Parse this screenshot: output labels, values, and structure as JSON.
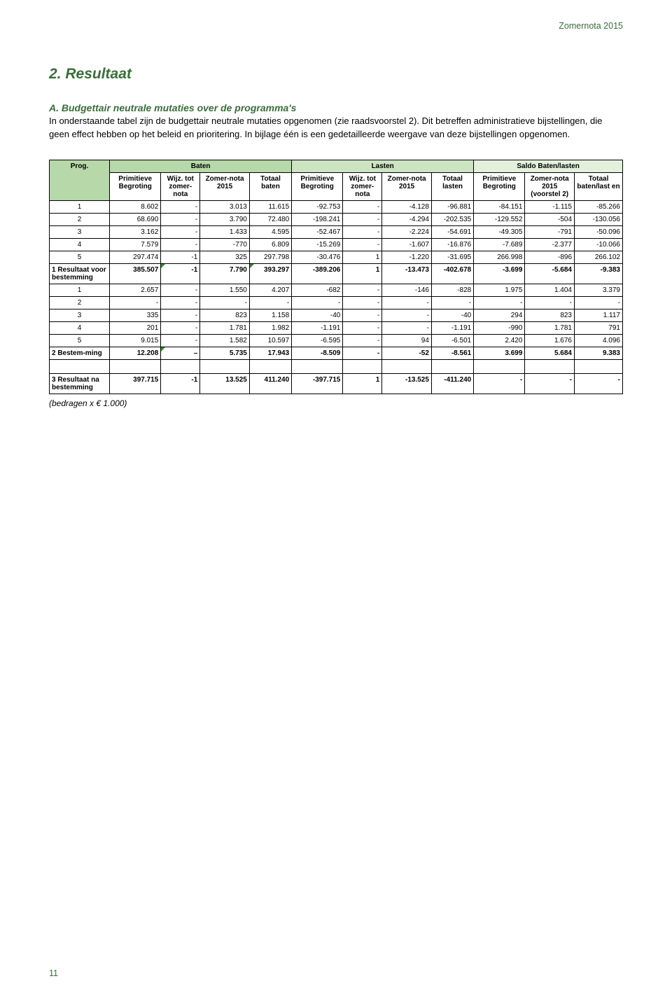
{
  "doc_header": "Zomernota 2015",
  "section_title": "2. Resultaat",
  "sub_heading": "A.    Budgettair neutrale mutaties over de programma's",
  "paragraph": "In onderstaande tabel zijn de budgettair neutrale mutaties opgenomen (zie raadsvoorstel 2). Dit betreffen administratieve bijstellingen, die geen effect hebben op het beleid en prioritering. In bijlage één is een gedetailleerde weergave van deze bijstellingen opgenomen.",
  "footnote": "(bedragen x € 1.000)",
  "page_num": "11",
  "table": {
    "group_headers": {
      "baten": "Baten",
      "lasten": "Lasten",
      "saldo": "Saldo Baten/lasten"
    },
    "col_headers": {
      "prog": "Prog.",
      "b_prim": "Primitieve Begroting",
      "b_wijz": "Wijz. tot zomer-nota",
      "b_zomer": "Zomer-nota 2015",
      "b_tot": "Totaal baten",
      "l_prim": "Primitieve Begroting",
      "l_wijz": "Wijz. tot zomer-nota",
      "l_zomer": "Zomer-nota 2015",
      "l_tot": "Totaal lasten",
      "s_prim": "Primitieve Begroting",
      "s_zomer": "Zomer-nota 2015 (voorstel 2)",
      "s_tot": "Totaal baten/last en"
    },
    "rows": [
      {
        "label": "1",
        "b": [
          "8.602",
          "-",
          "3.013",
          "11.615"
        ],
        "l": [
          "-92.753",
          "-",
          "-4.128",
          "-96.881"
        ],
        "s": [
          "-84.151",
          "-1.115",
          "-85.266"
        ]
      },
      {
        "label": "2",
        "b": [
          "68.690",
          "-",
          "3.790",
          "72.480"
        ],
        "l": [
          "-198.241",
          "-",
          "-4.294",
          "-202.535"
        ],
        "s": [
          "-129.552",
          "-504",
          "-130.056"
        ]
      },
      {
        "label": "3",
        "b": [
          "3.162",
          "-",
          "1.433",
          "4.595"
        ],
        "l": [
          "-52.467",
          "-",
          "-2.224",
          "-54.691"
        ],
        "s": [
          "-49.305",
          "-791",
          "-50.096"
        ]
      },
      {
        "label": "4",
        "b": [
          "7.579",
          "-",
          "-770",
          "6.809"
        ],
        "l": [
          "-15.269",
          "-",
          "-1.607",
          "-16.876"
        ],
        "s": [
          "-7.689",
          "-2.377",
          "-10.066"
        ]
      },
      {
        "label": "5",
        "b": [
          "297.474",
          "-1",
          "325",
          "297.798"
        ],
        "l": [
          "-30.476",
          "1",
          "-1.220",
          "-31.695"
        ],
        "s": [
          "266.998",
          "-896",
          "266.102"
        ]
      }
    ],
    "sub1": {
      "label": "1 Resultaat voor bestemming",
      "b": [
        "385.507",
        "-1",
        "7.790",
        "393.297"
      ],
      "l": [
        "-389.206",
        "1",
        "-13.473",
        "-402.678"
      ],
      "s": [
        "-3.699",
        "-5.684",
        "-9.383"
      ],
      "tri": [
        2,
        4
      ]
    },
    "rows2": [
      {
        "label": "1",
        "b": [
          "2.657",
          "-",
          "1.550",
          "4.207"
        ],
        "l": [
          "-682",
          "-",
          "-146",
          "-828"
        ],
        "s": [
          "1.975",
          "1.404",
          "3.379"
        ]
      },
      {
        "label": "2",
        "b": [
          "-",
          "-",
          "-",
          "-"
        ],
        "l": [
          "-",
          "-",
          "-",
          "-"
        ],
        "s": [
          "-",
          "-",
          "-"
        ]
      },
      {
        "label": "3",
        "b": [
          "335",
          "-",
          "823",
          "1.158"
        ],
        "l": [
          "-40",
          "-",
          "-",
          "-40"
        ],
        "s": [
          "294",
          "823",
          "1.117"
        ]
      },
      {
        "label": "4",
        "b": [
          "201",
          "-",
          "1.781",
          "1.982"
        ],
        "l": [
          "-1.191",
          "-",
          "-",
          "-1.191"
        ],
        "s": [
          "-990",
          "1.781",
          "791"
        ]
      },
      {
        "label": "5",
        "b": [
          "9.015",
          "-",
          "1.582",
          "10.597"
        ],
        "l": [
          "-6.595",
          "-",
          "94",
          "-6.501"
        ],
        "s": [
          "2.420",
          "1.676",
          "4.096"
        ]
      }
    ],
    "sub2": {
      "label": "2 Bestem-ming",
      "b": [
        "12.208",
        "–",
        "5.735",
        "17.943"
      ],
      "l": [
        "-8.509",
        "-",
        "-52",
        "-8.561"
      ],
      "s": [
        "3.699",
        "5.684",
        "9.383"
      ],
      "tri": [
        2
      ]
    },
    "sub3": {
      "label": "3 Resultaat na bestemming",
      "b": [
        "397.715",
        "-1",
        "13.525",
        "411.240"
      ],
      "l": [
        "-397.715",
        "1",
        "-13.525",
        "-411.240"
      ],
      "s": [
        "-",
        "-",
        "-"
      ]
    }
  }
}
